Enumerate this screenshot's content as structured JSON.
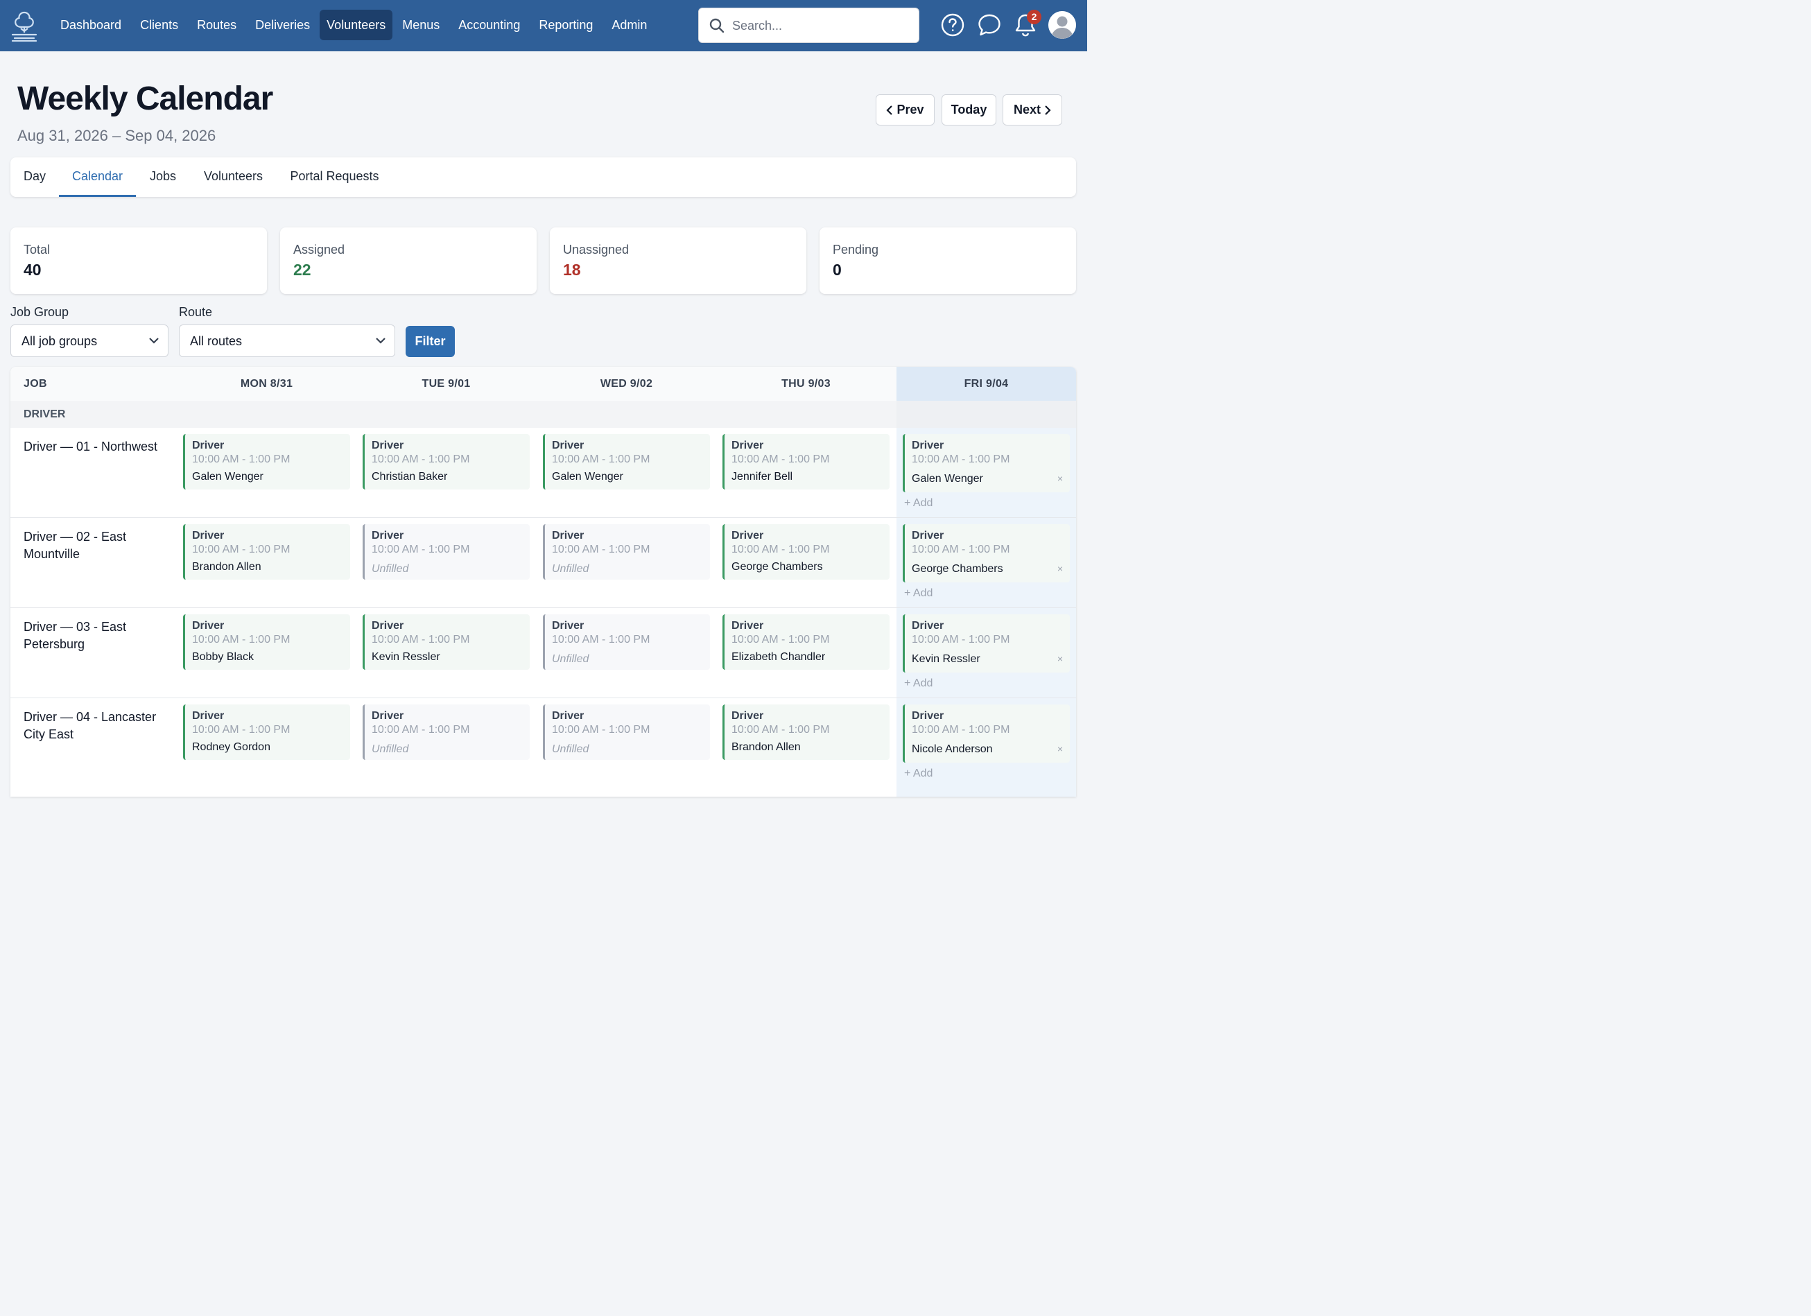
{
  "nav": {
    "links": [
      "Dashboard",
      "Clients",
      "Routes",
      "Deliveries",
      "Volunteers",
      "Menus",
      "Accounting",
      "Reporting",
      "Admin"
    ],
    "active": "Volunteers",
    "search_placeholder": "Search...",
    "notification_count": "2",
    "icons": [
      "help-icon",
      "chat-icon",
      "bell-icon",
      "user-avatar-icon"
    ]
  },
  "header": {
    "title": "Weekly Calendar",
    "date_range": "Aug 31, 2026 – Sep 04, 2026",
    "prev": "Prev",
    "today": "Today",
    "next": "Next"
  },
  "tabs": [
    "Day",
    "Calendar",
    "Jobs",
    "Volunteers",
    "Portal Requests"
  ],
  "active_tab": "Calendar",
  "stats": [
    {
      "label": "Total",
      "value": "40",
      "color": "#111827"
    },
    {
      "label": "Assigned",
      "value": "22",
      "color": "#2e7d4f"
    },
    {
      "label": "Unassigned",
      "value": "18",
      "color": "#b03028"
    },
    {
      "label": "Pending",
      "value": "0",
      "color": "#111827"
    }
  ],
  "filters": {
    "job_group_label": "Job Group",
    "job_group_value": "All job groups",
    "route_label": "Route",
    "route_value": "All routes",
    "button": "Filter"
  },
  "calendar": {
    "columns": [
      "JOB",
      "MON 8/31",
      "TUE 9/01",
      "WED 9/02",
      "THU 9/03",
      "FRI 9/04"
    ],
    "group": "DRIVER",
    "add_label": "+ Add",
    "remove_glyph": "×",
    "rows": [
      {
        "job": "Driver — 01 - Northwest",
        "cells": [
          {
            "type": "Driver",
            "time": "10:00 AM - 1:00 PM",
            "name": "Galen Wenger",
            "filled": true
          },
          {
            "type": "Driver",
            "time": "10:00 AM - 1:00 PM",
            "name": "Christian Baker",
            "filled": true
          },
          {
            "type": "Driver",
            "time": "10:00 AM - 1:00 PM",
            "name": "Galen Wenger",
            "filled": true
          },
          {
            "type": "Driver",
            "time": "10:00 AM - 1:00 PM",
            "name": "Jennifer Bell",
            "filled": true
          },
          {
            "type": "Driver",
            "time": "10:00 AM - 1:00 PM",
            "name": "Galen Wenger",
            "filled": true
          }
        ]
      },
      {
        "job": "Driver — 02 - East Mountville",
        "cells": [
          {
            "type": "Driver",
            "time": "10:00 AM - 1:00 PM",
            "name": "Brandon Allen",
            "filled": true
          },
          {
            "type": "Driver",
            "time": "10:00 AM - 1:00 PM",
            "name": "Unfilled",
            "filled": false
          },
          {
            "type": "Driver",
            "time": "10:00 AM - 1:00 PM",
            "name": "Unfilled",
            "filled": false
          },
          {
            "type": "Driver",
            "time": "10:00 AM - 1:00 PM",
            "name": "George Chambers",
            "filled": true
          },
          {
            "type": "Driver",
            "time": "10:00 AM - 1:00 PM",
            "name": "George Chambers",
            "filled": true
          }
        ]
      },
      {
        "job": "Driver — 03 - East Petersburg",
        "cells": [
          {
            "type": "Driver",
            "time": "10:00 AM - 1:00 PM",
            "name": "Bobby Black",
            "filled": true
          },
          {
            "type": "Driver",
            "time": "10:00 AM - 1:00 PM",
            "name": "Kevin Ressler",
            "filled": true
          },
          {
            "type": "Driver",
            "time": "10:00 AM - 1:00 PM",
            "name": "Unfilled",
            "filled": false
          },
          {
            "type": "Driver",
            "time": "10:00 AM - 1:00 PM",
            "name": "Elizabeth Chandler",
            "filled": true
          },
          {
            "type": "Driver",
            "time": "10:00 AM - 1:00 PM",
            "name": "Kevin Ressler",
            "filled": true
          }
        ]
      },
      {
        "job": "Driver — 04 - Lancaster City East",
        "cells": [
          {
            "type": "Driver",
            "time": "10:00 AM - 1:00 PM",
            "name": "Rodney Gordon",
            "filled": true
          },
          {
            "type": "Driver",
            "time": "10:00 AM - 1:00 PM",
            "name": "Unfilled",
            "filled": false
          },
          {
            "type": "Driver",
            "time": "10:00 AM - 1:00 PM",
            "name": "Unfilled",
            "filled": false
          },
          {
            "type": "Driver",
            "time": "10:00 AM - 1:00 PM",
            "name": "Brandon Allen",
            "filled": true
          },
          {
            "type": "Driver",
            "time": "10:00 AM - 1:00 PM",
            "name": "Nicole Anderson",
            "filled": true
          }
        ]
      }
    ]
  }
}
